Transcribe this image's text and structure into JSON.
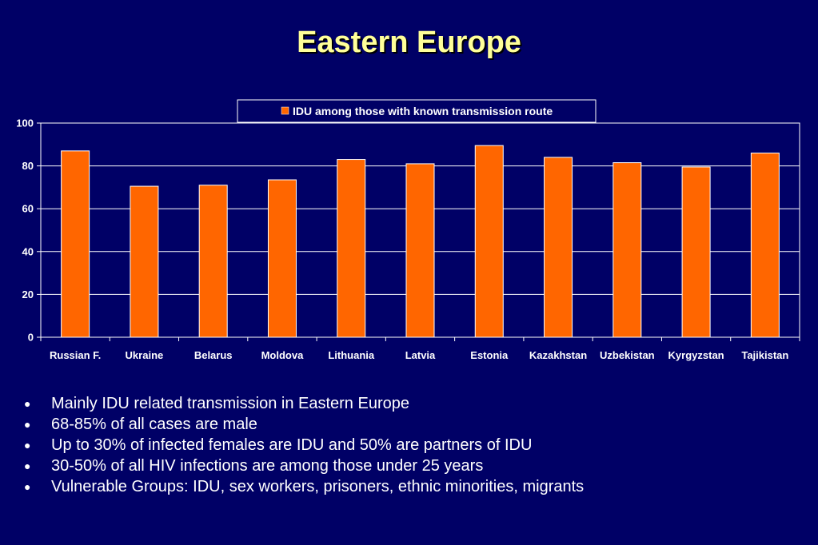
{
  "slide": {
    "title": "Eastern Europe"
  },
  "chart_data": {
    "type": "bar",
    "title": "",
    "xlabel": "",
    "ylabel": "",
    "categories": [
      "Russian F.",
      "Ukraine",
      "Belarus",
      "Moldova",
      "Lithuania",
      "Latvia",
      "Estonia",
      "Kazakhstan",
      "Uzbekistan",
      "Kyrgyzstan",
      "Tajikistan"
    ],
    "series": [
      {
        "name": "IDU among those with known transmission route",
        "values": [
          87,
          70.5,
          71,
          73.5,
          83,
          81,
          89.5,
          84,
          81.5,
          79.5,
          86
        ],
        "color": "#ff6600"
      }
    ],
    "ylim": [
      0,
      100
    ],
    "yticks": [
      0,
      20,
      40,
      60,
      80,
      100
    ],
    "grid": true,
    "legend_position": "top-center",
    "colors": {
      "plot_border": "#ffffff",
      "grid": "#ffffff",
      "bar_outline": "#ffffff"
    }
  },
  "bullets": {
    "marker": "●",
    "items": [
      "Mainly IDU related transmission in Eastern Europe",
      "68-85% of all cases are male",
      "Up to 30% of infected females are IDU and 50% are partners of IDU",
      "30-50% of all HIV infections are among those under 25 years",
      "Vulnerable Groups: IDU, sex workers, prisoners, ethnic minorities, migrants"
    ]
  }
}
